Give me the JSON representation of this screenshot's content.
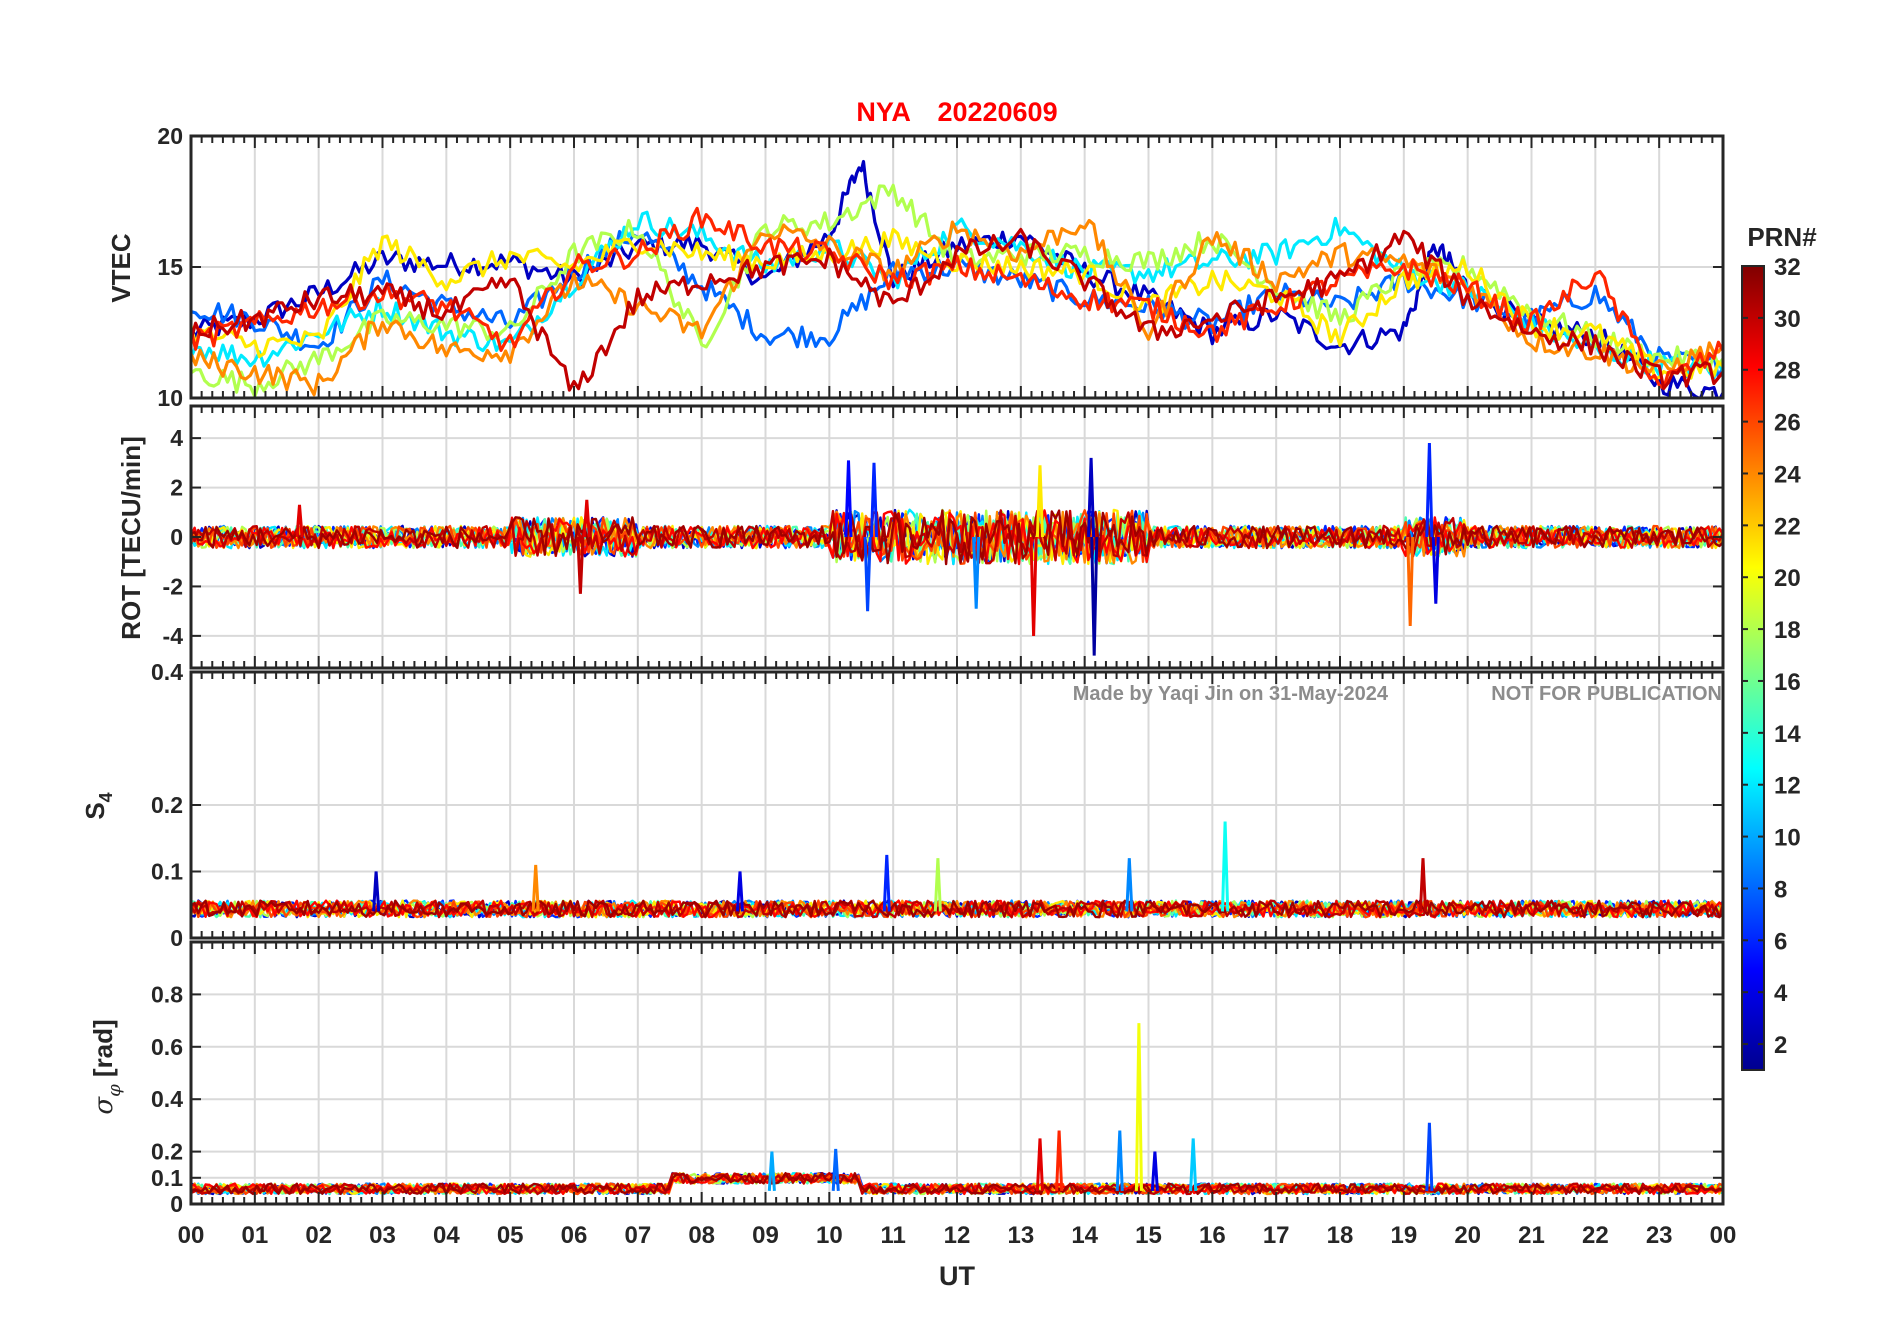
{
  "title": {
    "station": "NYA",
    "date": "20220609",
    "color": "#ff0000"
  },
  "watermark": {
    "made_by": "Made by Yaqi Jin on 31-May-2024",
    "notice": "NOT FOR PUBLICATION",
    "color": "#8c8c8c"
  },
  "xaxis": {
    "label": "UT",
    "ticks": [
      "00",
      "01",
      "02",
      "03",
      "04",
      "05",
      "06",
      "07",
      "08",
      "09",
      "10",
      "11",
      "12",
      "13",
      "14",
      "15",
      "16",
      "17",
      "18",
      "19",
      "20",
      "21",
      "22",
      "23",
      "00"
    ],
    "range_hours": [
      0,
      24
    ]
  },
  "colorbar": {
    "title": "PRN#",
    "range": [
      1,
      32
    ],
    "ticks": [
      "2",
      "4",
      "6",
      "8",
      "10",
      "12",
      "14",
      "16",
      "18",
      "20",
      "22",
      "24",
      "26",
      "28",
      "30",
      "32"
    ],
    "colormap": "jet"
  },
  "chart_data": [
    {
      "type": "line",
      "panel": "VTEC",
      "ylabel": "VTEC",
      "ylim": [
        10,
        20
      ],
      "yticks": [
        "10",
        "15",
        "20"
      ],
      "grid": true,
      "description_series": "one line per GPS satellite, coloured by PRN",
      "series": [
        {
          "prn": 3,
          "x": [
            0,
            1,
            2,
            3,
            4,
            5,
            6,
            7,
            8,
            9,
            10,
            10.5,
            11,
            12,
            13,
            14,
            15,
            16,
            17,
            18,
            19,
            19.5,
            20,
            21,
            22,
            23,
            24
          ],
          "y": [
            12.5,
            13,
            14,
            15.3,
            15.1,
            15.2,
            14.5,
            15.8,
            15.9,
            14.5,
            16.2,
            19,
            14.5,
            15.8,
            16.2,
            14.8,
            13.8,
            12.5,
            13.2,
            12,
            12.6,
            15.8,
            14.2,
            12.8,
            12.4,
            10.6,
            10.2
          ]
        },
        {
          "prn": 8,
          "x": [
            0,
            1,
            2,
            3,
            4,
            5,
            6,
            7,
            8,
            9,
            10,
            11,
            12,
            13,
            14,
            15,
            16,
            17,
            18,
            19,
            20,
            21,
            22,
            23,
            24
          ],
          "y": [
            13.5,
            13,
            12,
            14.5,
            13.5,
            12.8,
            14.8,
            16.4,
            14.3,
            12.4,
            12.4,
            14.8,
            15,
            14.5,
            13.8,
            13.5,
            12.8,
            14,
            13.5,
            14.5,
            13.8,
            13,
            14,
            11.5,
            11.2
          ]
        },
        {
          "prn": 12,
          "x": [
            0,
            1,
            2,
            3,
            4,
            5,
            6,
            7,
            8,
            9,
            10,
            11,
            12,
            13,
            14,
            15,
            16,
            17,
            18,
            19,
            20,
            21,
            22,
            23,
            24
          ],
          "y": [
            12,
            11.5,
            12.5,
            13.5,
            12.5,
            12,
            14.5,
            16.8,
            16.2,
            15,
            15.8,
            14.5,
            16.5,
            15.8,
            14.8,
            14.8,
            15.2,
            15.5,
            16.5,
            14.8,
            14.2,
            12.8,
            11.8,
            11.3,
            11
          ]
        },
        {
          "prn": 18,
          "x": [
            0,
            1,
            2,
            3,
            4,
            5,
            6,
            7,
            8,
            9,
            10,
            11,
            12,
            13,
            14,
            15,
            16,
            17,
            18,
            19,
            20,
            21,
            22,
            23,
            24
          ],
          "y": [
            11,
            10.5,
            11.5,
            13,
            12.8,
            12.5,
            15.5,
            16.5,
            12,
            16.5,
            16.7,
            18,
            15.2,
            15.5,
            15.5,
            15.2,
            16.1,
            14.3,
            13,
            14.8,
            15,
            13.3,
            12.3,
            11.5,
            11.5
          ]
        },
        {
          "prn": 21,
          "x": [
            0,
            1,
            2,
            3,
            4,
            5,
            6,
            7,
            8,
            9,
            10,
            11,
            12,
            13,
            14,
            15,
            16,
            17,
            18,
            19,
            20,
            21,
            22,
            23,
            24
          ],
          "y": [
            12.5,
            12,
            12.2,
            16,
            14.5,
            15.4,
            15,
            16,
            15.5,
            15.2,
            15.5,
            16,
            15.2,
            15,
            14.8,
            13.5,
            14.5,
            14,
            12.3,
            14.5,
            15,
            12.8,
            12.5,
            11,
            11.2
          ]
        },
        {
          "prn": 24,
          "x": [
            0,
            1,
            2,
            3,
            4,
            5,
            6,
            7,
            8,
            9,
            10,
            11,
            12,
            13,
            14,
            15,
            16,
            17,
            18,
            19,
            20,
            21,
            22,
            23,
            24
          ],
          "y": [
            11.5,
            11,
            10.5,
            13,
            11.8,
            11.8,
            14.5,
            13.5,
            12.5,
            16.5,
            15.8,
            14.8,
            16.5,
            15.5,
            16.8,
            12.5,
            16.2,
            14.5,
            15.5,
            15.2,
            14.3,
            12.2,
            11.8,
            11,
            12
          ]
        },
        {
          "prn": 27,
          "x": [
            0,
            1,
            2,
            3,
            4,
            5,
            6,
            7,
            8,
            9,
            10,
            11,
            12,
            13,
            14,
            15,
            16,
            17,
            18,
            19,
            20,
            21,
            22,
            23,
            24
          ],
          "y": [
            12.2,
            12.8,
            13.5,
            14,
            13.5,
            12,
            15,
            15.5,
            16.9,
            15.8,
            15.5,
            14.5,
            15,
            14.5,
            13.8,
            13.5,
            12.5,
            13.5,
            14.5,
            15,
            14.2,
            12.8,
            14.8,
            10.5,
            11.8
          ]
        },
        {
          "prn": 30,
          "x": [
            0,
            1,
            2,
            3,
            4,
            5,
            6,
            7,
            8,
            9,
            10,
            11,
            12,
            13,
            14,
            15,
            16,
            17,
            18,
            19,
            20,
            21,
            22,
            23,
            24
          ],
          "y": [
            12.5,
            13,
            13.8,
            14,
            13.2,
            14.5,
            10.2,
            13.8,
            14.5,
            15,
            15.3,
            13.5,
            15.5,
            16,
            14.5,
            12.5,
            13,
            13.8,
            14.5,
            16.2,
            13.8,
            12.5,
            12,
            10.8,
            11
          ]
        }
      ]
    },
    {
      "type": "line",
      "panel": "ROT",
      "ylabel": "ROT [TECU/min]",
      "ylim": [
        -5.3,
        5.3
      ],
      "yticks": [
        "-4",
        "-2",
        "0",
        "2",
        "4"
      ],
      "grid": true,
      "spikes": [
        {
          "x": 1.7,
          "y": 1.3,
          "prn": 29
        },
        {
          "x": 6.1,
          "y": -2.3,
          "prn": 30
        },
        {
          "x": 6.2,
          "y": 1.5,
          "prn": 29
        },
        {
          "x": 10.3,
          "y": 3.1,
          "prn": 5
        },
        {
          "x": 10.6,
          "y": -3.0,
          "prn": 7
        },
        {
          "x": 10.7,
          "y": 3.0,
          "prn": 6
        },
        {
          "x": 12.3,
          "y": -2.9,
          "prn": 9
        },
        {
          "x": 13.2,
          "y": -4.0,
          "prn": 29
        },
        {
          "x": 13.3,
          "y": 2.9,
          "prn": 21
        },
        {
          "x": 14.1,
          "y": 3.2,
          "prn": 3
        },
        {
          "x": 14.15,
          "y": -4.8,
          "prn": 2
        },
        {
          "x": 19.1,
          "y": -3.6,
          "prn": 25
        },
        {
          "x": 19.4,
          "y": 3.8,
          "prn": 6
        },
        {
          "x": 19.5,
          "y": -2.7,
          "prn": 4
        }
      ]
    },
    {
      "type": "line",
      "panel": "S4",
      "ylabel": "S4",
      "ylim": [
        0,
        0.4
      ],
      "yticks": [
        "0",
        "0.1",
        "0.2",
        "0.4"
      ],
      "grid": true,
      "baseline": 0.04,
      "spikes": [
        {
          "x": 2.9,
          "y": 0.1,
          "prn": 3
        },
        {
          "x": 5.4,
          "y": 0.11,
          "prn": 24
        },
        {
          "x": 8.6,
          "y": 0.1,
          "prn": 4
        },
        {
          "x": 10.9,
          "y": 0.125,
          "prn": 6
        },
        {
          "x": 11.7,
          "y": 0.12,
          "prn": 18
        },
        {
          "x": 14.7,
          "y": 0.12,
          "prn": 9
        },
        {
          "x": 16.2,
          "y": 0.175,
          "prn": 13
        },
        {
          "x": 19.3,
          "y": 0.12,
          "prn": 30
        }
      ]
    },
    {
      "type": "line",
      "panel": "sigma_phi",
      "ylabel": "σ_φ [rad]",
      "ylim": [
        0,
        1.0
      ],
      "yticks": [
        "0",
        "0.1",
        "0.2",
        "0.4",
        "0.6",
        "0.8"
      ],
      "grid": true,
      "baseline": 0.05,
      "spikes": [
        {
          "x": 9.1,
          "y": 0.2,
          "prn": 10
        },
        {
          "x": 10.1,
          "y": 0.21,
          "prn": 8
        },
        {
          "x": 13.3,
          "y": 0.25,
          "prn": 29
        },
        {
          "x": 13.6,
          "y": 0.28,
          "prn": 27
        },
        {
          "x": 14.55,
          "y": 0.28,
          "prn": 9
        },
        {
          "x": 14.85,
          "y": 0.69,
          "prn": 20
        },
        {
          "x": 15.1,
          "y": 0.2,
          "prn": 4
        },
        {
          "x": 15.7,
          "y": 0.25,
          "prn": 11
        },
        {
          "x": 19.4,
          "y": 0.31,
          "prn": 7
        }
      ]
    }
  ]
}
